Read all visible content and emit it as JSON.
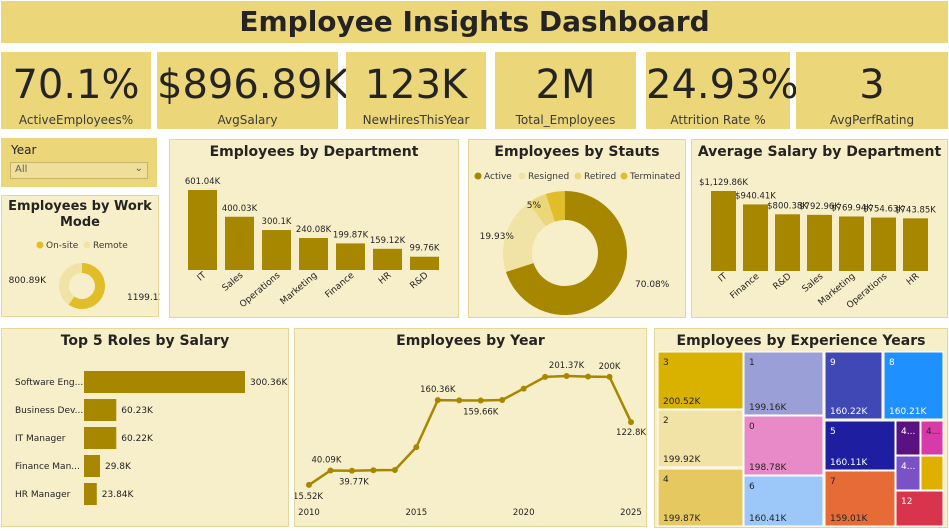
{
  "header": {
    "title": "Employee Insights Dashboard"
  },
  "kpis": [
    {
      "value": "70.1%",
      "label": "ActiveEmployees%"
    },
    {
      "value": "$896.89K",
      "label": "AvgSalary"
    },
    {
      "value": "123K",
      "label": "NewHiresThisYear"
    },
    {
      "value": "2M",
      "label": "Total_Employees"
    },
    {
      "value": "24.93%",
      "label": "Attrition Rate %"
    },
    {
      "value": "3",
      "label": "AvgPerfRating"
    }
  ],
  "filter": {
    "label": "Year",
    "value": "All"
  },
  "colors": {
    "gold": "#a88700",
    "light_gold": "#ecd67a",
    "panel": "#f7efc9"
  },
  "chart_data": [
    {
      "id": "work_mode",
      "type": "pie",
      "title": "Employees by Work Mode",
      "legend": [
        "On-site",
        "Remote"
      ],
      "values": [
        1199.11,
        800.89
      ],
      "labels": [
        "1199.11K",
        "800.89K"
      ],
      "colors": [
        "#e1bd2a",
        "#f1e3a6"
      ]
    },
    {
      "id": "department",
      "type": "bar",
      "title": "Employees by Department",
      "categories": [
        "IT",
        "Sales",
        "Operations",
        "Marketing",
        "Finance",
        "HR",
        "R&D"
      ],
      "values": [
        601.04,
        400.03,
        300.1,
        240.08,
        199.87,
        159.12,
        99.76
      ],
      "labels": [
        "601.04K",
        "400.03K",
        "300.1K",
        "240.08K",
        "199.87K",
        "159.12K",
        "99.76K"
      ]
    },
    {
      "id": "status",
      "type": "pie",
      "title": "Employees by Stauts",
      "legend": [
        "Active",
        "Resigned",
        "Retired",
        "Terminated"
      ],
      "values": [
        70.08,
        19.93,
        5,
        4.99
      ],
      "labels": [
        "70.08%",
        "19.93%",
        "5%",
        ""
      ],
      "colors": [
        "#a88700",
        "#f1e3a6",
        "#ecd67a",
        "#e1bd2a"
      ]
    },
    {
      "id": "avg_salary_dept",
      "type": "bar",
      "title": "Average Salary by Department",
      "categories": [
        "IT",
        "Finance",
        "R&D",
        "Sales",
        "Marketing",
        "Operations",
        "HR"
      ],
      "values": [
        1129.86,
        940.41,
        800.38,
        792.96,
        769.94,
        754.63,
        743.85
      ],
      "labels": [
        "$1,129.86K",
        "$940.41K",
        "$800.38K",
        "$792.96K",
        "$769.94K",
        "$754.63K",
        "$743.85K"
      ]
    },
    {
      "id": "top_roles",
      "type": "bar",
      "title": "Top 5 Roles by Salary",
      "categories": [
        "Software Eng...",
        "Business Dev...",
        "IT Manager",
        "Finance Man...",
        "HR Manager"
      ],
      "values": [
        300.36,
        60.23,
        60.22,
        29.8,
        23.84
      ],
      "labels": [
        "300.36K",
        "60.23K",
        "60.22K",
        "29.8K",
        "23.84K"
      ]
    },
    {
      "id": "by_year",
      "type": "line",
      "title": "Employees by Year",
      "x": [
        2010,
        2011,
        2012,
        2013,
        2014,
        2015,
        2016,
        2017,
        2018,
        2019,
        2020,
        2021,
        2022,
        2023,
        2024,
        2025
      ],
      "values": [
        15.52,
        40.09,
        39.77,
        40.5,
        41.0,
        80.0,
        160.36,
        159.8,
        159.66,
        160.5,
        180.0,
        200.0,
        201.37,
        200.5,
        200.0,
        122.8
      ],
      "labels": [
        "15.52K",
        "40.09K",
        "39.77K",
        "",
        "",
        "",
        "160.36K",
        "",
        "159.66K",
        "",
        "",
        "",
        "201.37K",
        "",
        "200K",
        "122.8K"
      ],
      "xticks": [
        "2010",
        "2015",
        "2020",
        "2025"
      ],
      "ylim": [
        0,
        210
      ]
    },
    {
      "id": "experience",
      "type": "heatmap",
      "title": "Employees by Experience Years",
      "tiles": [
        {
          "name": "3",
          "value": "200.52K",
          "color": "#d9b200"
        },
        {
          "name": "2",
          "value": "199.92K",
          "color": "#f1e3a6"
        },
        {
          "name": "4",
          "value": "199.87K",
          "color": "#e6c860"
        },
        {
          "name": "1",
          "value": "199.16K",
          "color": "#9b9fd8"
        },
        {
          "name": "0",
          "value": "198.78K",
          "color": "#e98ac8"
        },
        {
          "name": "6",
          "value": "160.41K",
          "color": "#9bc8f8"
        },
        {
          "name": "9",
          "value": "160.22K",
          "color": "#3f48b5"
        },
        {
          "name": "8",
          "value": "160.21K",
          "color": "#1e90ff"
        },
        {
          "name": "5",
          "value": "160.11K",
          "color": "#1d1fa0"
        },
        {
          "name": "7",
          "value": "159.01K",
          "color": "#e66b36"
        },
        {
          "name": "4...",
          "value": "",
          "color": "#5a1280"
        },
        {
          "name": "4...",
          "value": "",
          "color": "#d93aaa"
        },
        {
          "name": "4...",
          "value": "",
          "color": "#7a52c6"
        },
        {
          "name": "",
          "value": "",
          "color": "#e0b000"
        },
        {
          "name": "12",
          "value": "",
          "color": "#d8344e"
        }
      ]
    }
  ]
}
